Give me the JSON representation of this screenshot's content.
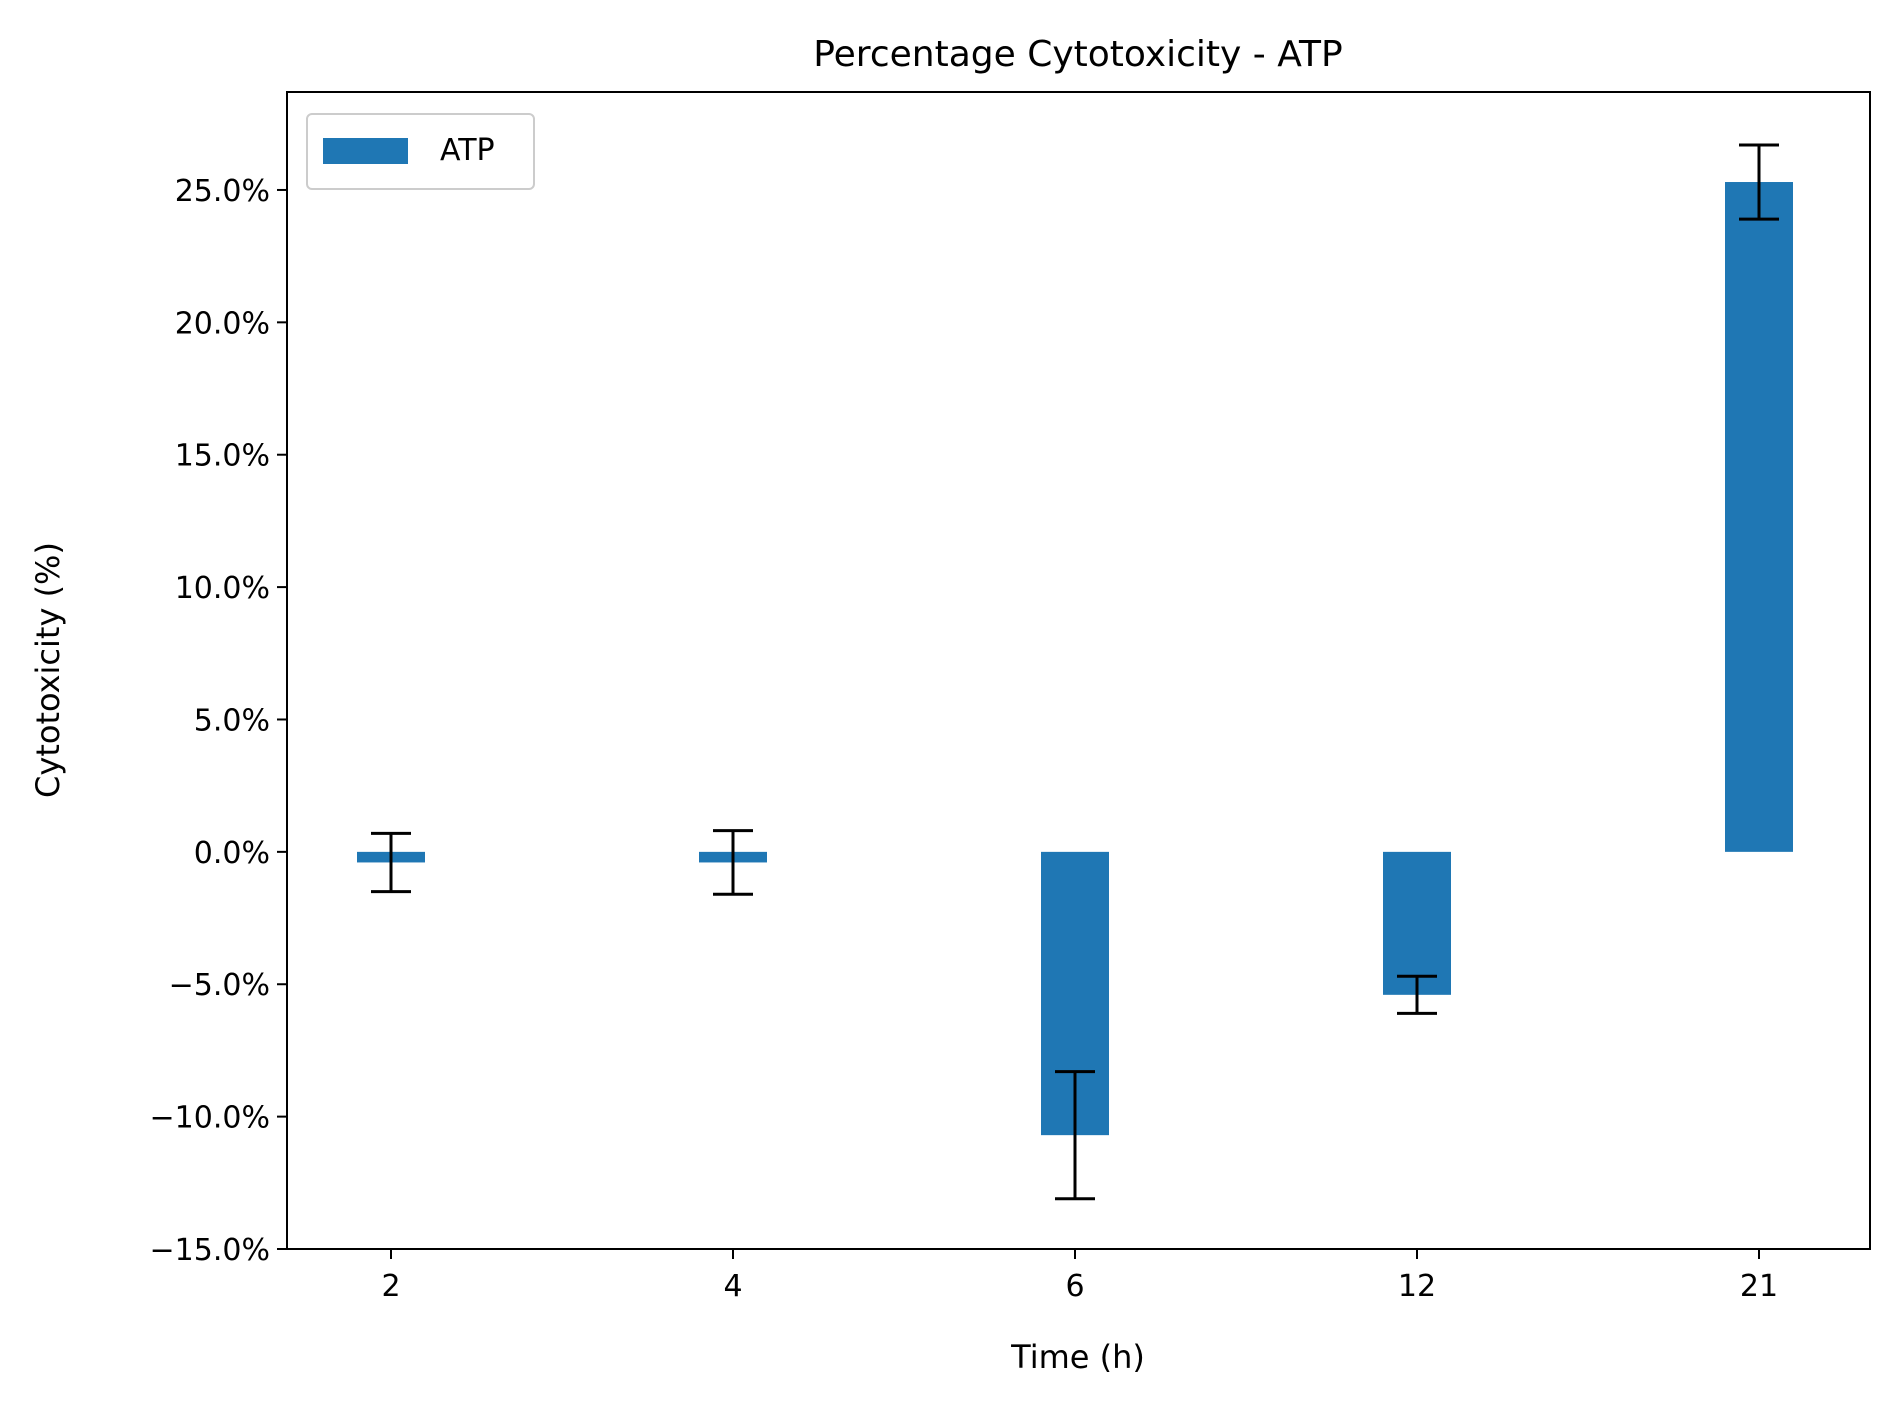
{
  "chart_data": {
    "type": "bar",
    "title": "Percentage Cytotoxicity - ATP",
    "xlabel": "Time (h)",
    "ylabel": "Cytotoxicity (%)",
    "categories": [
      "2",
      "4",
      "6",
      "12",
      "21"
    ],
    "series": [
      {
        "name": "ATP",
        "values": [
          -0.4,
          -0.4,
          -10.7,
          -5.4,
          25.3
        ],
        "errors": [
          1.1,
          1.2,
          2.4,
          0.7,
          1.4
        ]
      }
    ],
    "ylim": [
      -15.0,
      28.7
    ],
    "yticks": [
      -15.0,
      -10.0,
      -5.0,
      0.0,
      5.0,
      10.0,
      15.0,
      20.0,
      25.0
    ],
    "ytick_labels": [
      "−15.0%",
      "−10.0%",
      "−5.0%",
      "0.0%",
      "5.0%",
      "10.0%",
      "15.0%",
      "20.0%",
      "25.0%"
    ],
    "grid": false,
    "legend_position": "top-left",
    "colors": {
      "bar": "#1f77b4",
      "error": "#000000",
      "axis": "#000000"
    }
  }
}
